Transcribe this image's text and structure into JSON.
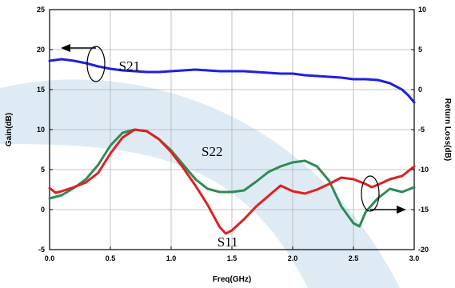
{
  "chart_data": {
    "type": "line",
    "xlabel": "Freq(GHz)",
    "ylabel": "Gain(dB)",
    "y2label": "Return Loss(dB)",
    "xlim": [
      0.0,
      3.0
    ],
    "ylim": [
      -5,
      25
    ],
    "y2lim": [
      -20,
      10
    ],
    "x_ticks": [
      "0.0",
      "0.5",
      "1.0",
      "1.5",
      "2.0",
      "2.5",
      "3.0"
    ],
    "y_ticks": [
      "-5",
      "0",
      "5",
      "10",
      "15",
      "20",
      "25"
    ],
    "y2_ticks": [
      "-20",
      "-15",
      "-10",
      "-5",
      "0",
      "5",
      "10"
    ],
    "grid": true,
    "series": [
      {
        "name": "S21",
        "axis": "left",
        "color": "#1f1fe0",
        "x": [
          0.0,
          0.1,
          0.2,
          0.3,
          0.4,
          0.5,
          0.6,
          0.7,
          0.8,
          0.9,
          1.0,
          1.1,
          1.2,
          1.3,
          1.4,
          1.5,
          1.6,
          1.7,
          1.8,
          1.9,
          2.0,
          2.1,
          2.2,
          2.3,
          2.4,
          2.5,
          2.6,
          2.7,
          2.8,
          2.9,
          2.95,
          3.0
        ],
        "y": [
          18.6,
          18.8,
          18.6,
          18.3,
          17.9,
          17.6,
          17.4,
          17.3,
          17.2,
          17.2,
          17.3,
          17.4,
          17.5,
          17.4,
          17.3,
          17.3,
          17.3,
          17.2,
          17.1,
          17.0,
          17.0,
          16.8,
          16.7,
          16.6,
          16.5,
          16.3,
          16.3,
          16.2,
          15.8,
          15.0,
          14.3,
          13.4
        ]
      },
      {
        "name": "S11",
        "axis": "right",
        "color": "#e02020",
        "x": [
          0.0,
          0.05,
          0.1,
          0.2,
          0.3,
          0.4,
          0.5,
          0.6,
          0.7,
          0.8,
          0.9,
          1.0,
          1.1,
          1.2,
          1.3,
          1.35,
          1.4,
          1.45,
          1.5,
          1.6,
          1.7,
          1.8,
          1.9,
          2.0,
          2.1,
          2.2,
          2.3,
          2.4,
          2.5,
          2.6,
          2.65,
          2.7,
          2.8,
          2.9,
          3.0
        ],
        "y": [
          -12.3,
          -12.9,
          -12.7,
          -12.2,
          -11.6,
          -10.4,
          -8.0,
          -6.0,
          -5.0,
          -5.2,
          -6.2,
          -7.8,
          -9.8,
          -12.0,
          -14.4,
          -15.8,
          -17.2,
          -18.0,
          -17.6,
          -16.2,
          -14.6,
          -13.3,
          -12.0,
          -12.7,
          -13.0,
          -12.5,
          -11.8,
          -11.0,
          -11.2,
          -11.8,
          -12.2,
          -11.9,
          -11.2,
          -10.8,
          -9.6
        ]
      },
      {
        "name": "S22",
        "axis": "right",
        "color": "#2e8b57",
        "x": [
          0.0,
          0.05,
          0.1,
          0.2,
          0.3,
          0.4,
          0.5,
          0.6,
          0.7,
          0.8,
          0.9,
          1.0,
          1.1,
          1.2,
          1.3,
          1.4,
          1.5,
          1.6,
          1.7,
          1.8,
          1.9,
          2.0,
          2.1,
          2.2,
          2.3,
          2.4,
          2.5,
          2.55,
          2.6,
          2.7,
          2.8,
          2.9,
          3.0
        ],
        "y": [
          -13.6,
          -13.4,
          -13.2,
          -12.3,
          -11.2,
          -9.4,
          -7.0,
          -5.4,
          -5.0,
          -5.2,
          -6.2,
          -7.6,
          -9.4,
          -11.2,
          -12.4,
          -12.8,
          -12.8,
          -12.6,
          -11.5,
          -10.3,
          -9.6,
          -9.1,
          -8.9,
          -9.6,
          -11.4,
          -14.6,
          -16.7,
          -17.1,
          -15.3,
          -13.6,
          -12.4,
          -12.8,
          -12.2
        ]
      }
    ],
    "annotations": [
      {
        "text": "S21",
        "x": 0.57,
        "y": 17.4,
        "axis": "left"
      },
      {
        "text": "S22",
        "x": 1.25,
        "y": -8.3,
        "axis": "right"
      },
      {
        "text": "S11",
        "x": 1.38,
        "y": -19.6,
        "axis": "right"
      }
    ]
  }
}
